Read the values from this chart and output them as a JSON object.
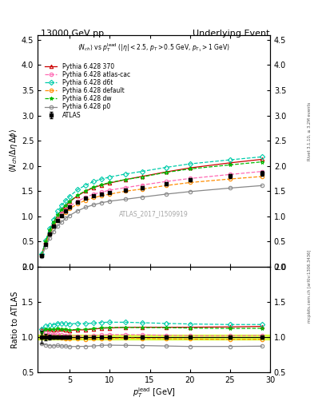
{
  "title_left": "13000 GeV pp",
  "title_right": "Underlying Event",
  "watermark": "ATLAS_2017_I1509919",
  "right_label": "Rivet 3.1.10, ≥ 3.2M events",
  "right_label2": "mcplots.cern.ch [arXiv:1306.3436]",
  "xlim": [
    1,
    30
  ],
  "ylim_main": [
    0,
    4.6
  ],
  "ylim_ratio": [
    0.5,
    2.0
  ],
  "x_atlas": [
    1.5,
    2.0,
    2.5,
    3.0,
    3.5,
    4.0,
    4.5,
    5.0,
    6.0,
    7.0,
    8.0,
    9.0,
    10.0,
    12.0,
    14.0,
    17.0,
    20.0,
    25.0,
    29.0
  ],
  "y_atlas": [
    0.22,
    0.45,
    0.65,
    0.8,
    0.92,
    1.02,
    1.1,
    1.18,
    1.28,
    1.36,
    1.41,
    1.44,
    1.47,
    1.52,
    1.57,
    1.65,
    1.72,
    1.8,
    1.85
  ],
  "y_atlas_err": [
    0.02,
    0.02,
    0.02,
    0.02,
    0.02,
    0.02,
    0.02,
    0.02,
    0.02,
    0.02,
    0.02,
    0.02,
    0.02,
    0.03,
    0.03,
    0.03,
    0.03,
    0.04,
    0.05
  ],
  "x_mc": [
    1.5,
    2.0,
    2.5,
    3.0,
    3.5,
    4.0,
    4.5,
    5.0,
    6.0,
    7.0,
    8.0,
    9.0,
    10.0,
    12.0,
    14.0,
    17.0,
    20.0,
    25.0,
    29.0
  ],
  "y_370": [
    0.245,
    0.5,
    0.72,
    0.88,
    1.02,
    1.13,
    1.21,
    1.29,
    1.41,
    1.5,
    1.57,
    1.62,
    1.66,
    1.73,
    1.79,
    1.88,
    1.96,
    2.06,
    2.13
  ],
  "y_atlas_cac": [
    0.235,
    0.48,
    0.68,
    0.83,
    0.96,
    1.05,
    1.13,
    1.2,
    1.3,
    1.38,
    1.44,
    1.48,
    1.52,
    1.57,
    1.62,
    1.69,
    1.75,
    1.83,
    1.89
  ],
  "y_d6t": [
    0.245,
    0.52,
    0.76,
    0.94,
    1.1,
    1.22,
    1.31,
    1.4,
    1.53,
    1.62,
    1.69,
    1.74,
    1.78,
    1.84,
    1.89,
    1.97,
    2.04,
    2.12,
    2.18
  ],
  "y_default": [
    0.22,
    0.46,
    0.65,
    0.8,
    0.92,
    1.01,
    1.08,
    1.15,
    1.25,
    1.32,
    1.37,
    1.41,
    1.44,
    1.5,
    1.54,
    1.61,
    1.67,
    1.74,
    1.79
  ],
  "y_dw": [
    0.235,
    0.5,
    0.72,
    0.89,
    1.03,
    1.14,
    1.22,
    1.3,
    1.42,
    1.51,
    1.58,
    1.63,
    1.67,
    1.73,
    1.78,
    1.87,
    1.94,
    2.02,
    2.08
  ],
  "y_p0": [
    0.2,
    0.4,
    0.57,
    0.7,
    0.81,
    0.89,
    0.96,
    1.02,
    1.11,
    1.18,
    1.23,
    1.27,
    1.3,
    1.34,
    1.38,
    1.44,
    1.49,
    1.56,
    1.61
  ],
  "color_370": "#cc0000",
  "color_atlas_cac": "#ff69b4",
  "color_d6t": "#00ccaa",
  "color_default": "#ff8c00",
  "color_dw": "#00bb00",
  "color_p0": "#888888",
  "color_atlas_band": "#ccff00"
}
